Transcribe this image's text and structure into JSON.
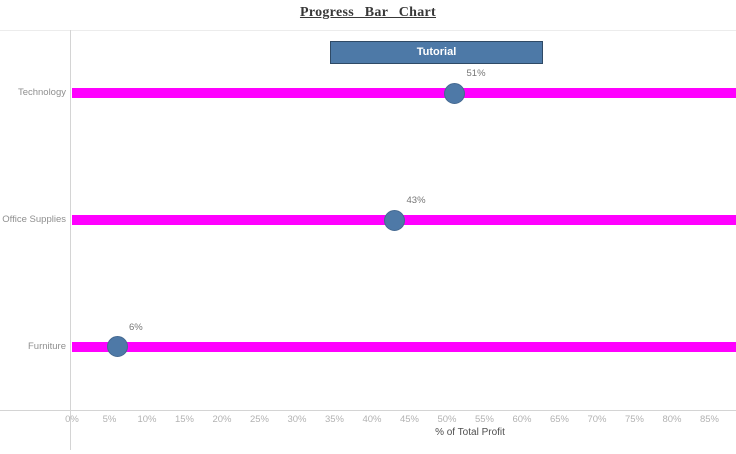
{
  "header": {
    "title": "Progress Bar Chart"
  },
  "tutorial_button": {
    "label": "Tutorial"
  },
  "colors": {
    "bar": "#ff00ff",
    "marker": "#4e79a7",
    "marker_border": "#446991",
    "button_fill": "#4d79a7",
    "button_border": "#2f4a66",
    "axis_line": "#d4d4d4",
    "top_border": "#ececec",
    "tick_label": "#b2b2b2",
    "category_label": "#8f8f8f",
    "value_label": "#767676",
    "axis_title": "#4f4f4f"
  },
  "chart_data": {
    "type": "bar",
    "subtype": "progress-bar",
    "title": "Progress Bar Chart",
    "categories": [
      "Technology",
      "Office Supplies",
      "Furniture"
    ],
    "values": [
      51,
      43,
      6
    ],
    "value_labels": [
      "51%",
      "43%",
      "6%"
    ],
    "xlabel": "% of Total Profit",
    "ylabel": "",
    "xlim": [
      0,
      88.5
    ],
    "x_ticks": [
      "0%",
      "5%",
      "10%",
      "15%",
      "20%",
      "25%",
      "30%",
      "35%",
      "40%",
      "45%",
      "50%",
      "55%",
      "60%",
      "65%",
      "70%",
      "75%",
      "80%",
      "85%"
    ],
    "x_tick_values": [
      0,
      5,
      10,
      15,
      20,
      25,
      30,
      35,
      40,
      45,
      50,
      55,
      60,
      65,
      70,
      75,
      80,
      85
    ],
    "grid": false,
    "legend": "none",
    "bars_span_full_width": true
  }
}
